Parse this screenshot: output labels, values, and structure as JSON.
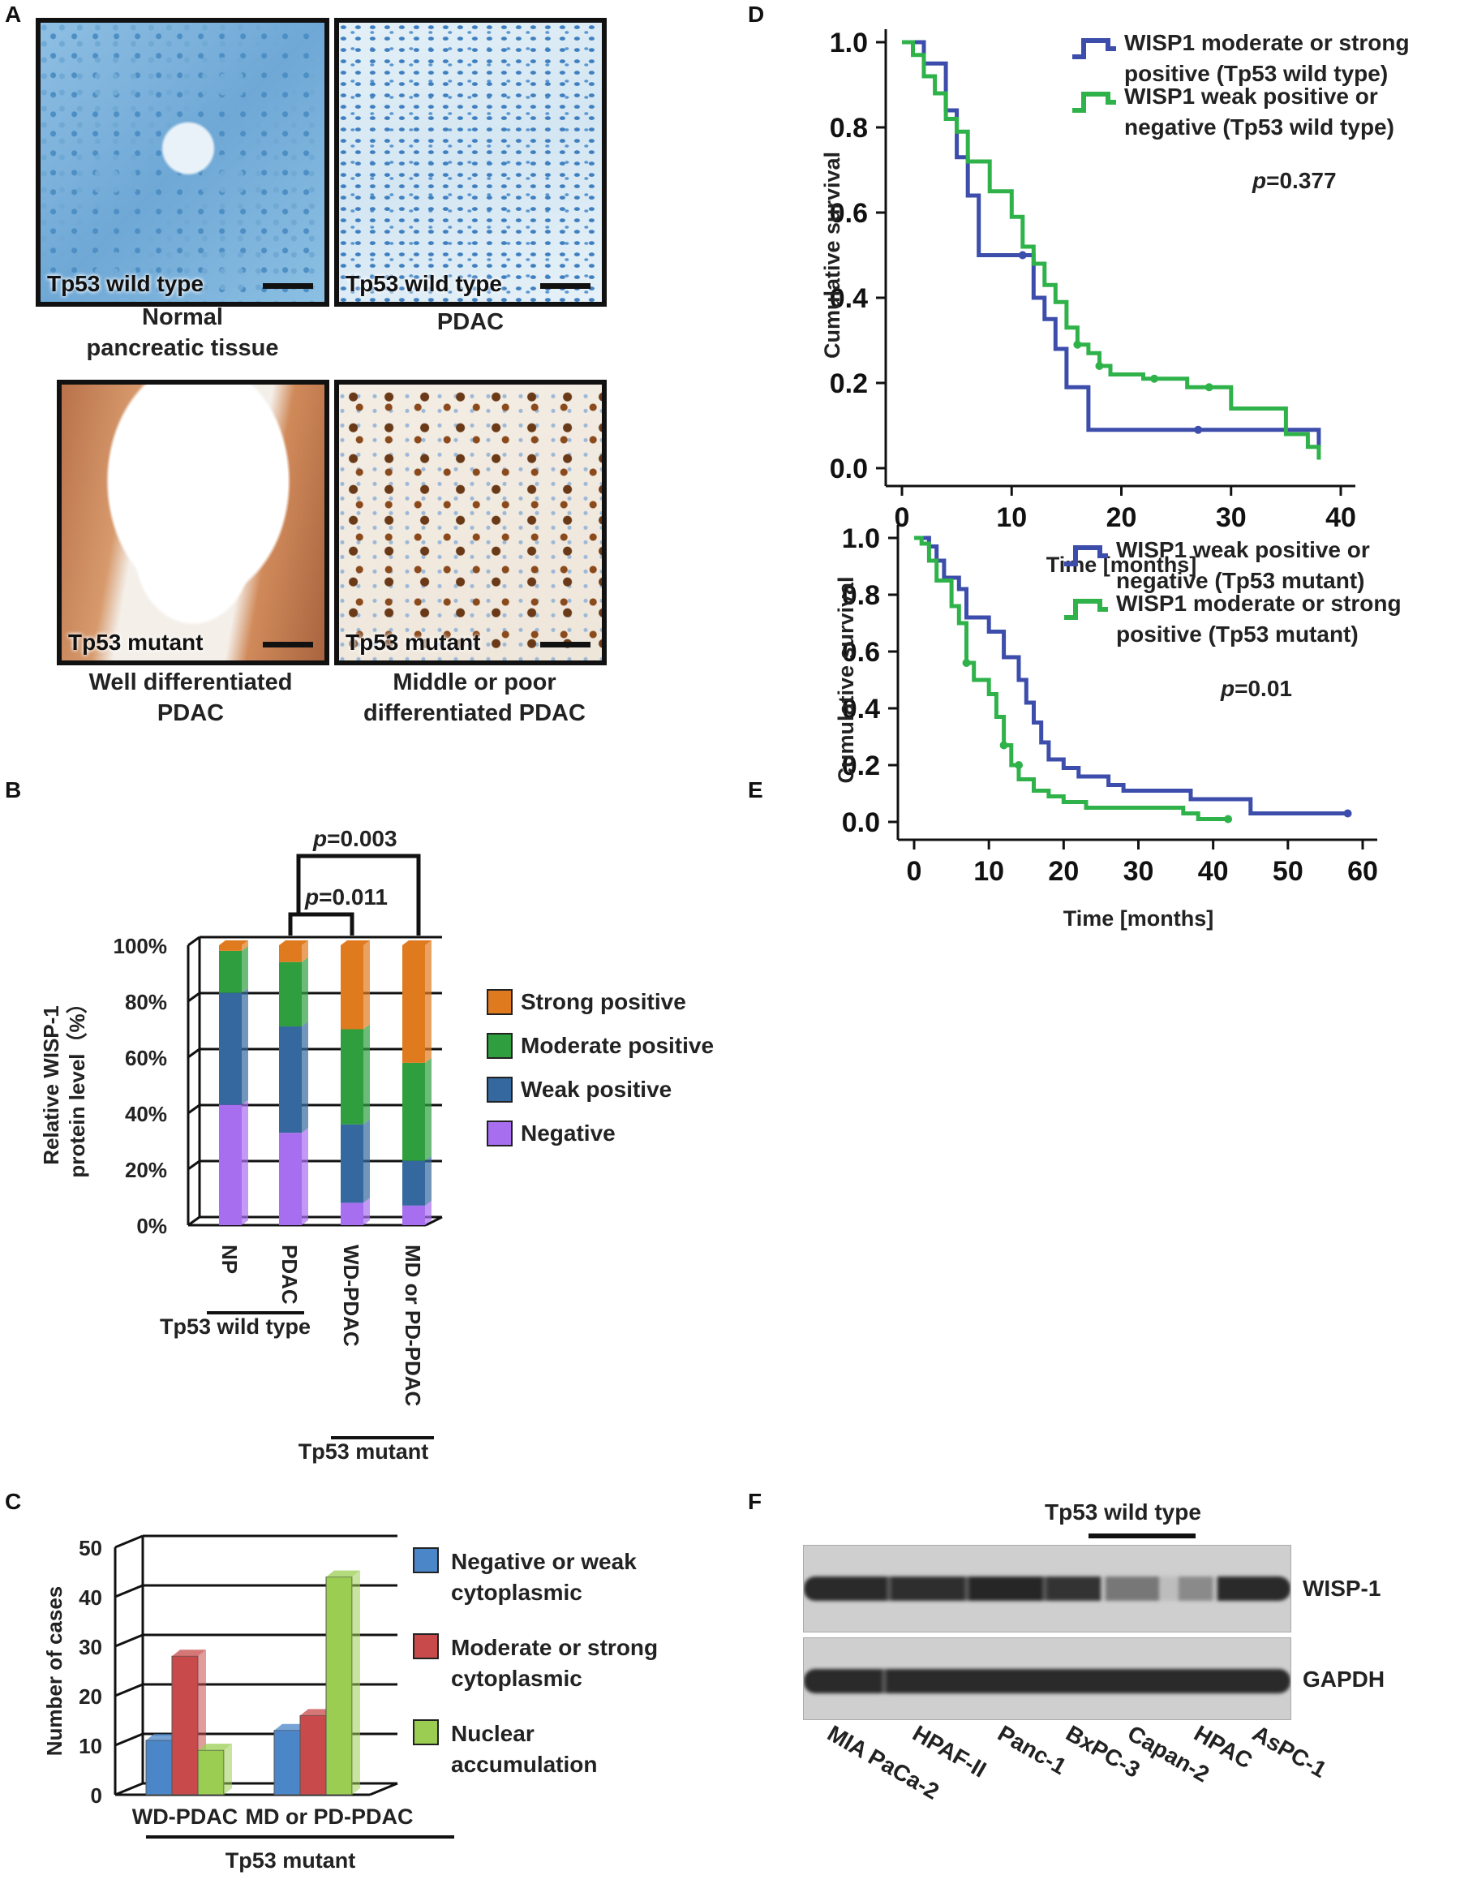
{
  "panel_labels": {
    "a": "A",
    "b": "B",
    "c": "C",
    "d": "D",
    "e": "E",
    "f": "F"
  },
  "colors": {
    "blue": "#3c4dab",
    "green": "#2fb24a",
    "strong": "#e07a1f",
    "moderate": "#2e9e3e",
    "weak": "#34689e",
    "negative": "#a86ef0",
    "c_blue": "#4a86c8",
    "c_red": "#c84a4a",
    "c_green": "#9acd52"
  },
  "panel_a": {
    "images": [
      {
        "tag": "Tp53 wild type",
        "caption": "Normal pancreatic tissue"
      },
      {
        "tag": "Tp53 wild type",
        "caption": "PDAC"
      },
      {
        "tag": "Tp53  mutant",
        "caption": "Well differentiated PDAC"
      },
      {
        "tag": "Tp53  mutant",
        "caption": "Middle or poor differentiated PDAC"
      }
    ]
  },
  "chart_data": [
    {
      "id": "B",
      "type": "bar",
      "stacked": true,
      "categories": [
        "NP",
        "PDAC",
        "WD-PDAC",
        "MD or PD-PDAC"
      ],
      "series": [
        {
          "name": "Negative",
          "values": [
            43,
            33,
            8,
            7
          ]
        },
        {
          "name": "Weak positive",
          "values": [
            40,
            38,
            28,
            16
          ]
        },
        {
          "name": "Moderate positive",
          "values": [
            15,
            23,
            34,
            35
          ]
        },
        {
          "name": "Strong positive",
          "values": [
            2,
            6,
            30,
            42
          ]
        }
      ],
      "legend_order": [
        "Strong positive",
        "Moderate positive",
        "Weak positive",
        "Negative"
      ],
      "ylabel": "Relative WISP-1 protein level（%）",
      "yticks": [
        "0%",
        "20%",
        "40%",
        "60%",
        "80%",
        "100%"
      ],
      "ylim": [
        0,
        100
      ],
      "group_labels": [
        "Tp53 wild type",
        "Tp53  mutant"
      ],
      "brackets": [
        {
          "text": "=0.011",
          "p": "p"
        },
        {
          "text": "=0.003",
          "p": "p"
        }
      ]
    },
    {
      "id": "C",
      "type": "bar",
      "categories": [
        "WD-PDAC",
        "MD or PD-PDAC"
      ],
      "series": [
        {
          "name": "Negative or weak cytoplasmic",
          "values": [
            11,
            13
          ]
        },
        {
          "name": "Moderate or strong cytoplasmic",
          "values": [
            28,
            16
          ]
        },
        {
          "name": "Nuclear accumulation",
          "values": [
            9,
            44
          ]
        }
      ],
      "legend": [
        [
          "Negative or weak",
          "cytoplasmic"
        ],
        [
          "Moderate or strong",
          "cytoplasmic"
        ],
        [
          "Nuclear",
          "accumulation"
        ]
      ],
      "ylabel": "Number of cases",
      "yticks": [
        0,
        10,
        20,
        30,
        40,
        50
      ],
      "ylim": [
        0,
        50
      ],
      "group_label": "Tp53  mutant"
    },
    {
      "id": "D",
      "type": "line",
      "step": true,
      "xlabel": "Time [months]",
      "ylabel": "Cumulative survival",
      "xticks": [
        0,
        10,
        20,
        30,
        40
      ],
      "yticks": [
        "0.0",
        "0.2",
        "0.4",
        "0.6",
        "0.8",
        "1.0"
      ],
      "xlim": [
        0,
        40
      ],
      "ylim": [
        0,
        1
      ],
      "p_text": "=0.377",
      "series": [
        {
          "name": "WISP1 moderate or strong positive (Tp53 wild type)",
          "legend": [
            "WISP1 moderate or strong",
            "positive (Tp53 wild type)"
          ],
          "points": [
            [
              0,
              1
            ],
            [
              2,
              1
            ],
            [
              2,
              0.95
            ],
            [
              4,
              0.95
            ],
            [
              4,
              0.84
            ],
            [
              5,
              0.84
            ],
            [
              5,
              0.73
            ],
            [
              6,
              0.73
            ],
            [
              6,
              0.64
            ],
            [
              7,
              0.64
            ],
            [
              7,
              0.5
            ],
            [
              11,
              0.5
            ],
            [
              12,
              0.5
            ],
            [
              12,
              0.4
            ],
            [
              13,
              0.4
            ],
            [
              13,
              0.35
            ],
            [
              14,
              0.35
            ],
            [
              14,
              0.28
            ],
            [
              15,
              0.28
            ],
            [
              15,
              0.19
            ],
            [
              17,
              0.19
            ],
            [
              17,
              0.09
            ],
            [
              27,
              0.09
            ],
            [
              38,
              0.09
            ],
            [
              38,
              0.05
            ]
          ],
          "censor": [
            [
              11,
              0.5
            ],
            [
              27,
              0.09
            ]
          ]
        },
        {
          "name": "WISP1 weak positive or negative (Tp53 wild type)",
          "legend": [
            "WISP1 weak positive or",
            "negative (Tp53 wild type)"
          ],
          "points": [
            [
              0,
              1
            ],
            [
              1,
              1
            ],
            [
              1,
              0.97
            ],
            [
              2,
              0.97
            ],
            [
              2,
              0.92
            ],
            [
              3,
              0.92
            ],
            [
              3,
              0.88
            ],
            [
              4,
              0.88
            ],
            [
              4,
              0.82
            ],
            [
              5,
              0.82
            ],
            [
              5,
              0.79
            ],
            [
              6,
              0.79
            ],
            [
              6,
              0.72
            ],
            [
              8,
              0.72
            ],
            [
              8,
              0.65
            ],
            [
              10,
              0.65
            ],
            [
              10,
              0.59
            ],
            [
              11,
              0.59
            ],
            [
              11,
              0.52
            ],
            [
              12,
              0.52
            ],
            [
              12,
              0.48
            ],
            [
              13,
              0.48
            ],
            [
              13,
              0.43
            ],
            [
              14,
              0.43
            ],
            [
              14,
              0.39
            ],
            [
              15,
              0.39
            ],
            [
              15,
              0.33
            ],
            [
              16,
              0.33
            ],
            [
              16,
              0.29
            ],
            [
              17,
              0.29
            ],
            [
              17,
              0.27
            ],
            [
              18,
              0.27
            ],
            [
              18,
              0.24
            ],
            [
              19,
              0.24
            ],
            [
              19,
              0.22
            ],
            [
              22,
              0.22
            ],
            [
              22,
              0.21
            ],
            [
              26,
              0.21
            ],
            [
              26,
              0.19
            ],
            [
              30,
              0.19
            ],
            [
              30,
              0.14
            ],
            [
              35,
              0.14
            ],
            [
              35,
              0.08
            ],
            [
              37,
              0.08
            ],
            [
              37,
              0.05
            ],
            [
              38,
              0.05
            ],
            [
              38,
              0.02
            ]
          ],
          "censor": [
            [
              16,
              0.29
            ],
            [
              18,
              0.24
            ],
            [
              23,
              0.21
            ],
            [
              28,
              0.19
            ]
          ]
        }
      ]
    },
    {
      "id": "E",
      "type": "line",
      "step": true,
      "xlabel": "Time [months]",
      "ylabel": "Cumulative survival",
      "xticks": [
        0,
        10,
        20,
        30,
        40,
        50,
        60
      ],
      "yticks": [
        "0.0",
        "0.2",
        "0.4",
        "0.6",
        "0.8",
        "1.0"
      ],
      "xlim": [
        0,
        60
      ],
      "ylim": [
        0,
        1
      ],
      "p_text": "=0.01",
      "series": [
        {
          "name": "WISP1 weak positive or negative (Tp53 mutant)",
          "legend": [
            "WISP1 weak positive or",
            "negative (Tp53  mutant)"
          ],
          "points": [
            [
              0,
              1
            ],
            [
              2,
              1
            ],
            [
              2,
              0.97
            ],
            [
              3,
              0.97
            ],
            [
              3,
              0.92
            ],
            [
              4,
              0.92
            ],
            [
              4,
              0.86
            ],
            [
              6,
              0.86
            ],
            [
              6,
              0.82
            ],
            [
              7,
              0.82
            ],
            [
              7,
              0.72
            ],
            [
              10,
              0.72
            ],
            [
              10,
              0.67
            ],
            [
              12,
              0.67
            ],
            [
              12,
              0.58
            ],
            [
              14,
              0.58
            ],
            [
              14,
              0.5
            ],
            [
              15,
              0.5
            ],
            [
              15,
              0.42
            ],
            [
              16,
              0.42
            ],
            [
              16,
              0.35
            ],
            [
              17,
              0.35
            ],
            [
              17,
              0.28
            ],
            [
              18,
              0.28
            ],
            [
              18,
              0.22
            ],
            [
              20,
              0.22
            ],
            [
              20,
              0.19
            ],
            [
              22,
              0.19
            ],
            [
              22,
              0.16
            ],
            [
              26,
              0.16
            ],
            [
              26,
              0.13
            ],
            [
              28,
              0.13
            ],
            [
              28,
              0.11
            ],
            [
              37,
              0.11
            ],
            [
              37,
              0.08
            ],
            [
              45,
              0.08
            ],
            [
              45,
              0.03
            ],
            [
              58,
              0.03
            ]
          ],
          "censor": [
            [
              58,
              0.03
            ]
          ]
        },
        {
          "name": "WISP1 moderate or strong positive (Tp53 mutant)",
          "legend": [
            "WISP1 moderate or strong",
            "positive  (Tp53  mutant)"
          ],
          "points": [
            [
              0,
              1
            ],
            [
              1,
              1
            ],
            [
              1,
              0.98
            ],
            [
              2,
              0.98
            ],
            [
              2,
              0.92
            ],
            [
              3,
              0.92
            ],
            [
              3,
              0.85
            ],
            [
              5,
              0.85
            ],
            [
              5,
              0.76
            ],
            [
              6,
              0.76
            ],
            [
              6,
              0.7
            ],
            [
              7,
              0.7
            ],
            [
              7,
              0.56
            ],
            [
              8,
              0.56
            ],
            [
              8,
              0.5
            ],
            [
              10,
              0.5
            ],
            [
              10,
              0.45
            ],
            [
              11,
              0.45
            ],
            [
              11,
              0.37
            ],
            [
              12,
              0.37
            ],
            [
              12,
              0.27
            ],
            [
              13,
              0.27
            ],
            [
              13,
              0.2
            ],
            [
              14,
              0.2
            ],
            [
              14,
              0.15
            ],
            [
              16,
              0.15
            ],
            [
              16,
              0.11
            ],
            [
              18,
              0.11
            ],
            [
              18,
              0.09
            ],
            [
              20,
              0.09
            ],
            [
              20,
              0.07
            ],
            [
              23,
              0.07
            ],
            [
              23,
              0.05
            ],
            [
              36,
              0.05
            ],
            [
              36,
              0.03
            ],
            [
              38,
              0.03
            ],
            [
              38,
              0.01
            ],
            [
              42,
              0.01
            ]
          ],
          "censor": [
            [
              7,
              0.56
            ],
            [
              12,
              0.27
            ],
            [
              14,
              0.2
            ],
            [
              42,
              0.01
            ]
          ]
        }
      ]
    }
  ],
  "panel_f": {
    "header": "Tp53 wild type",
    "blots": [
      "WISP-1",
      "GAPDH"
    ],
    "lanes": [
      "MIA PaCa-2",
      "HPAF-II",
      "Panc-1",
      "BxPC-3",
      "Capan-2",
      "HPAC",
      "AsPC-1"
    ]
  }
}
